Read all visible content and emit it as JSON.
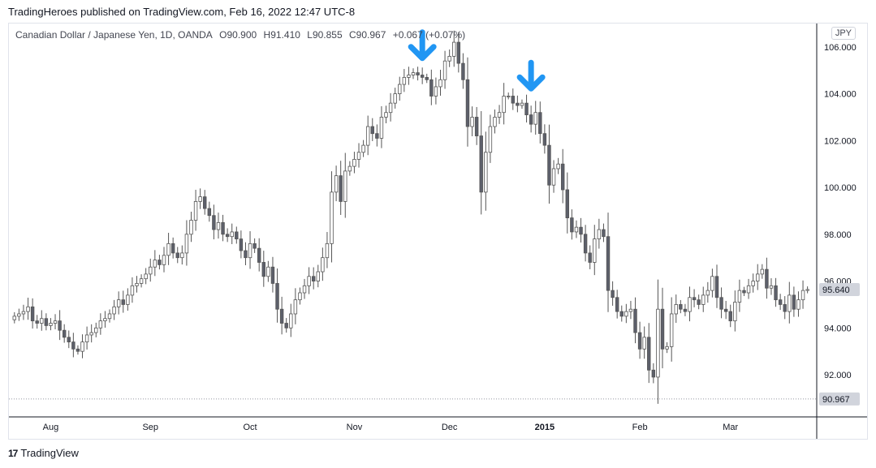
{
  "header": {
    "published_text": "TradingHeroes published on TradingView.com, Feb 16, 2022 12:47 UTC-8"
  },
  "legend": {
    "symbol": "Canadian Dollar / Japanese Yen, 1D, OANDA",
    "open": "O90.900",
    "high": "H91.410",
    "low": "L90.855",
    "close": "C90.967",
    "change": "+0.067 (+0.07%)"
  },
  "currency": "JPY",
  "brand": {
    "logo": "17",
    "name": "TradingView"
  },
  "colors": {
    "up_fill": "#ffffff",
    "down_fill": "#5d606b",
    "wick": "#555555",
    "arrow": "#2196f3",
    "last_price_bg": "#d1d4dc",
    "grid": "#e0e3eb"
  },
  "chart_data": {
    "type": "candlestick",
    "title": "",
    "xlabel": "",
    "ylabel": "",
    "ylim": [
      90.2,
      107.0
    ],
    "y_ticks": [
      "92.000",
      "94.000",
      "96.000",
      "98.000",
      "100.000",
      "102.000",
      "104.000",
      "106.000"
    ],
    "x_ticks": [
      {
        "label": "Aug",
        "bar": 8
      },
      {
        "label": "Sep",
        "bar": 30
      },
      {
        "label": "Oct",
        "bar": 52
      },
      {
        "label": "Nov",
        "bar": 75
      },
      {
        "label": "Dec",
        "bar": 96
      },
      {
        "label": "2015",
        "bar": 117,
        "bold": true
      },
      {
        "label": "Feb",
        "bar": 138
      },
      {
        "label": "Mar",
        "bar": 158
      }
    ],
    "price_labels": [
      {
        "value": 95.64,
        "text": "95.640"
      },
      {
        "value": 90.967,
        "text": "90.967",
        "dotted_line": true
      }
    ],
    "annotations": [
      {
        "type": "down-arrow",
        "bar": 90
      },
      {
        "type": "down-arrow",
        "bar": 114
      }
    ],
    "closes": [
      94.5,
      94.6,
      94.7,
      94.9,
      94.3,
      94.2,
      94.4,
      94.1,
      94.2,
      94.3,
      93.9,
      93.6,
      93.4,
      93.1,
      93.0,
      93.4,
      93.7,
      93.8,
      94.0,
      94.3,
      94.4,
      94.6,
      94.9,
      95.2,
      95.0,
      95.4,
      95.8,
      95.9,
      96.1,
      96.3,
      96.6,
      96.9,
      96.7,
      97.1,
      97.6,
      97.2,
      97.0,
      97.2,
      98.0,
      98.6,
      99.4,
      99.6,
      99.1,
      98.8,
      98.2,
      98.5,
      98.0,
      97.9,
      98.1,
      97.8,
      97.3,
      97.0,
      97.6,
      97.4,
      96.8,
      96.2,
      96.6,
      95.9,
      94.8,
      94.2,
      94.0,
      94.6,
      95.2,
      95.5,
      95.8,
      96.2,
      96.0,
      96.4,
      97.0,
      97.6,
      99.8,
      100.5,
      99.4,
      100.7,
      100.9,
      101.2,
      101.5,
      101.8,
      102.6,
      102.3,
      102.1,
      103.0,
      103.2,
      103.6,
      104.0,
      104.4,
      104.7,
      104.8,
      104.9,
      104.8,
      104.7,
      104.6,
      103.9,
      104.3,
      104.6,
      105.4,
      105.6,
      106.2,
      105.3,
      104.6,
      102.6,
      103.0,
      102.2,
      99.8,
      101.5,
      102.6,
      103.0,
      103.2,
      103.9,
      103.9,
      103.6,
      103.5,
      103.6,
      103.1,
      102.7,
      103.2,
      102.3,
      101.8,
      100.1,
      100.8,
      101.0,
      99.9,
      98.7,
      98.1,
      98.3,
      98.0,
      97.2,
      96.8,
      97.8,
      98.2,
      97.9,
      95.6,
      95.3,
      94.7,
      94.5,
      94.7,
      94.8,
      93.8,
      93.1,
      93.6,
      92.2,
      91.9,
      94.8,
      93.1,
      93.2,
      94.6,
      95.0,
      94.8,
      94.7,
      95.3,
      95.2,
      95.0,
      95.4,
      95.6,
      96.2,
      95.3,
      94.8,
      94.7,
      94.3,
      95.1,
      95.6,
      95.5,
      95.8,
      96.0,
      96.3,
      96.5,
      95.7,
      95.8,
      95.2,
      95.0,
      94.7,
      95.4,
      94.8,
      95.2,
      95.6,
      95.64
    ]
  }
}
